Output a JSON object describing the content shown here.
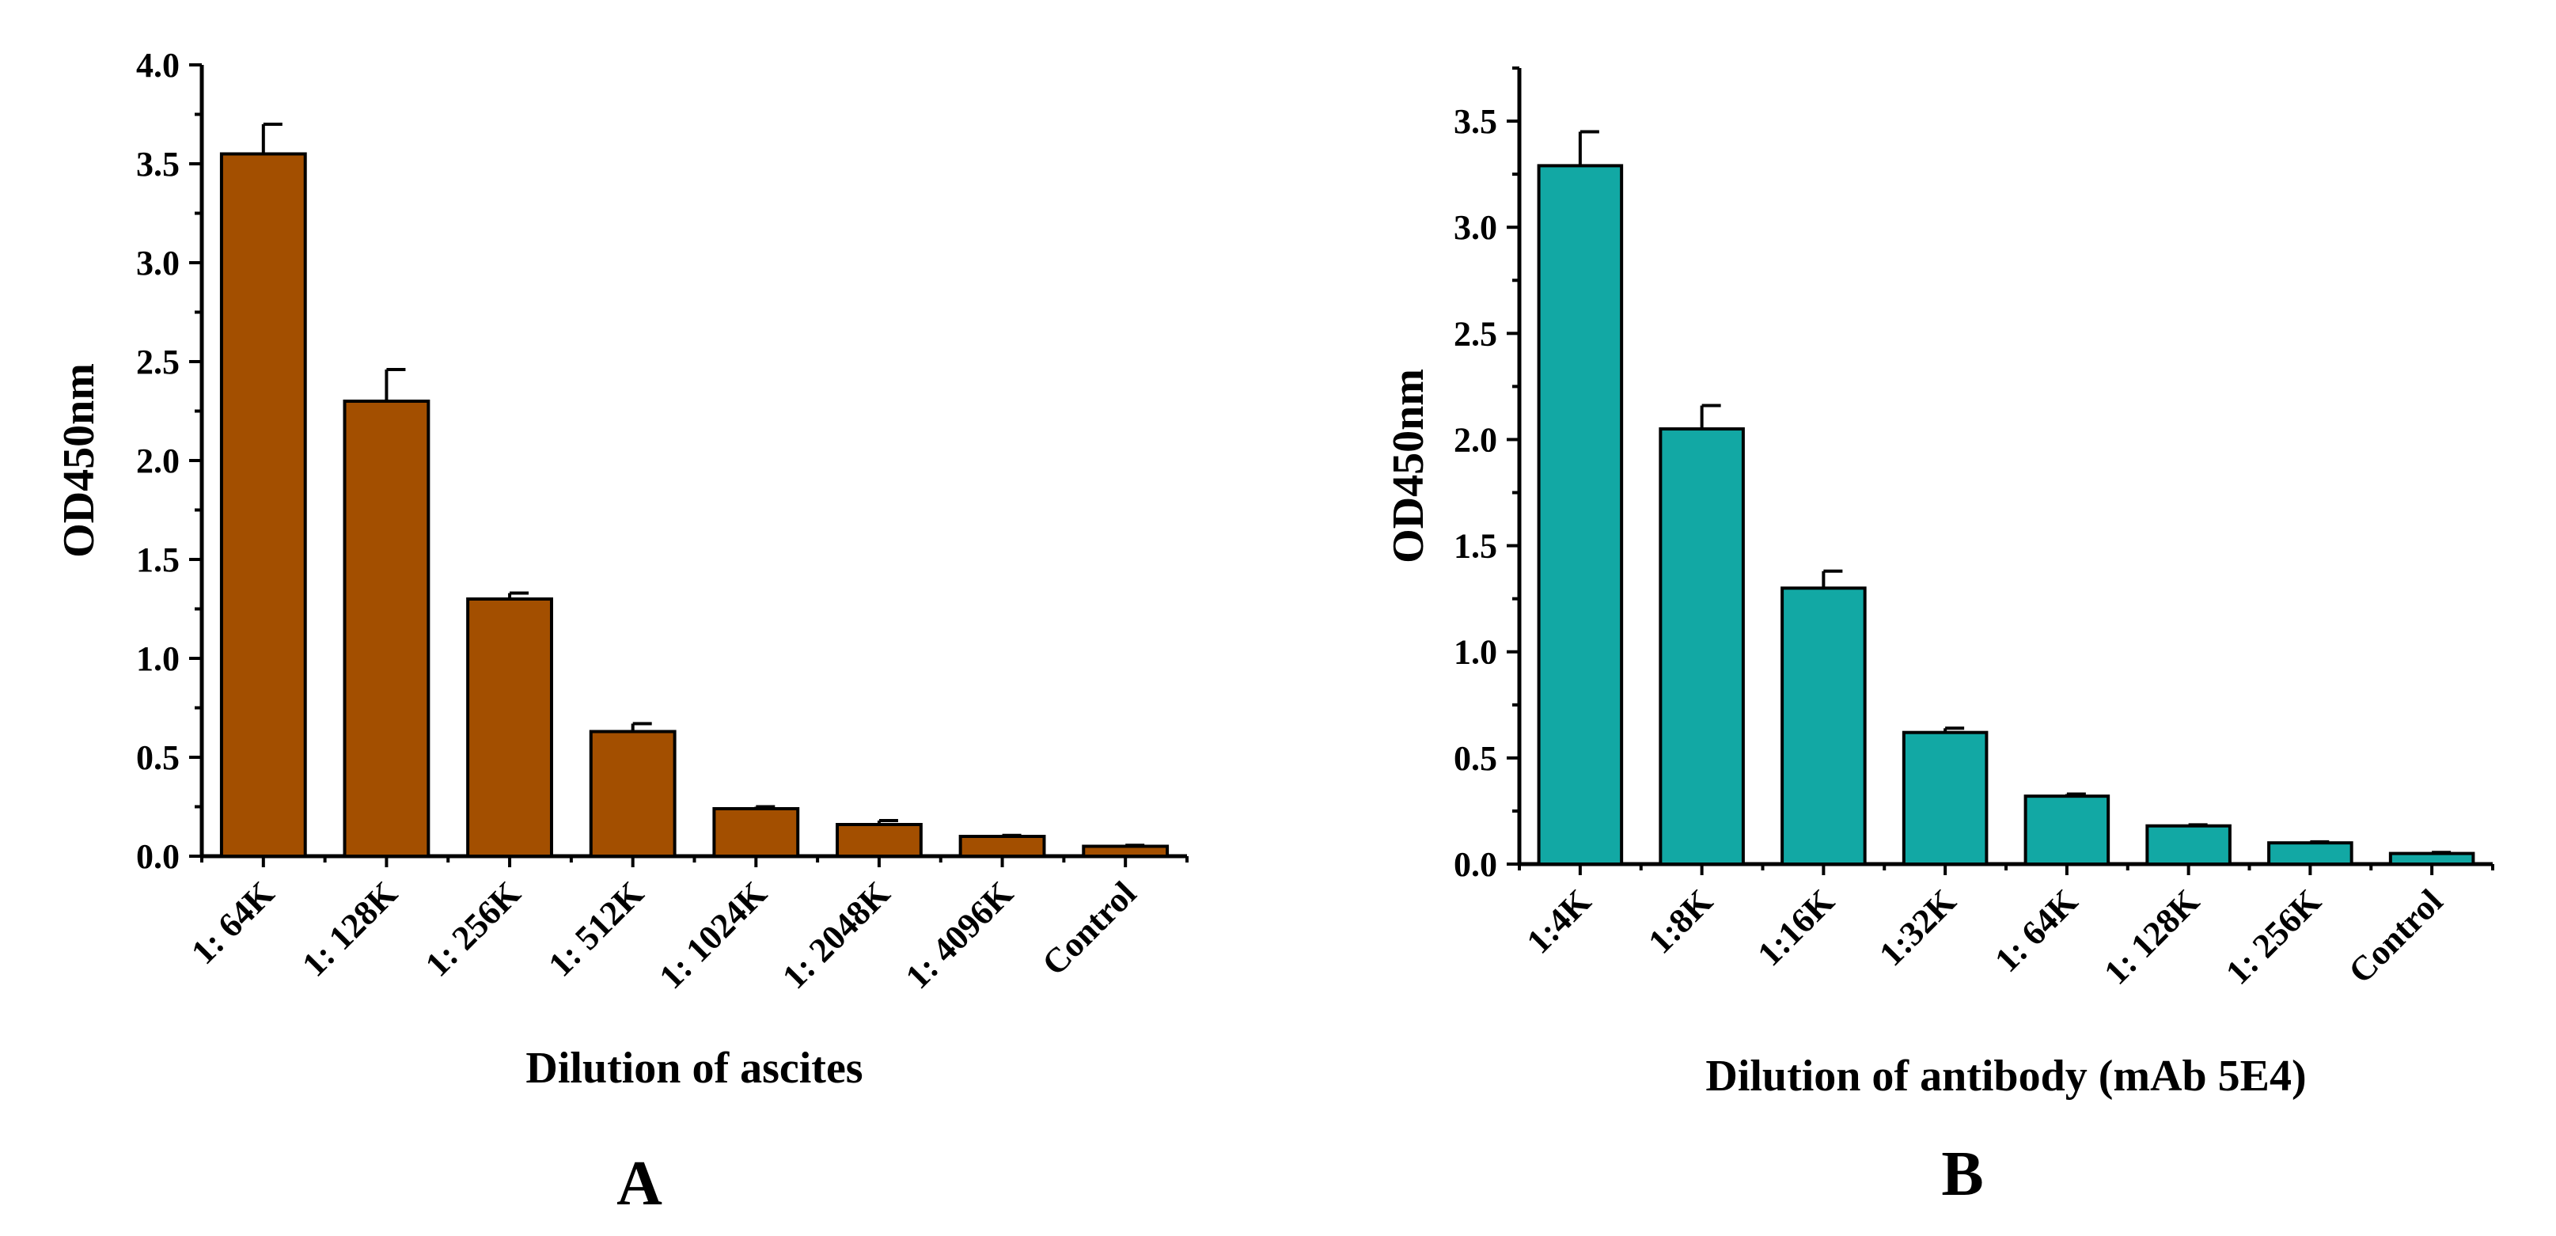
{
  "chart_data": [
    {
      "type": "bar",
      "panel": "A",
      "xlabel": "Dilution of ascites",
      "ylabel": "OD450nm",
      "ylim": [
        0,
        4.0
      ],
      "yticks": [
        "0.0",
        "0.5",
        "1.0",
        "1.5",
        "2.0",
        "2.5",
        "3.0",
        "3.5",
        "4.0"
      ],
      "categories": [
        "1:  64K",
        "1:  128K",
        "1:  256K",
        "1:  512K",
        "1:  1024K",
        "1:  2048K",
        "1:  4096K",
        "Control"
      ],
      "values": [
        3.55,
        2.3,
        1.3,
        0.63,
        0.24,
        0.16,
        0.1,
        0.05
      ],
      "errors": [
        0.15,
        0.16,
        0.03,
        0.04,
        0.01,
        0.02,
        0.005,
        0.005
      ],
      "color": "#a34f00"
    },
    {
      "type": "bar",
      "panel": "B",
      "xlabel": "Dilution of antibody (mAb 5E4)",
      "ylabel": "OD450nm",
      "ylim": [
        0,
        3.75
      ],
      "yticks": [
        "0.0",
        "0.5",
        "1.0",
        "1.5",
        "2.0",
        "2.5",
        "3.0",
        "3.5"
      ],
      "categories": [
        "1:4K",
        "1:8K",
        "1:16K",
        "1:32K",
        "1:  64K",
        "1:  128K",
        "1:  256K",
        "Control"
      ],
      "values": [
        3.29,
        2.05,
        1.3,
        0.62,
        0.32,
        0.18,
        0.1,
        0.05
      ],
      "errors": [
        0.16,
        0.11,
        0.08,
        0.02,
        0.01,
        0.005,
        0.005,
        0.005
      ],
      "color": "#12a8a4"
    }
  ]
}
